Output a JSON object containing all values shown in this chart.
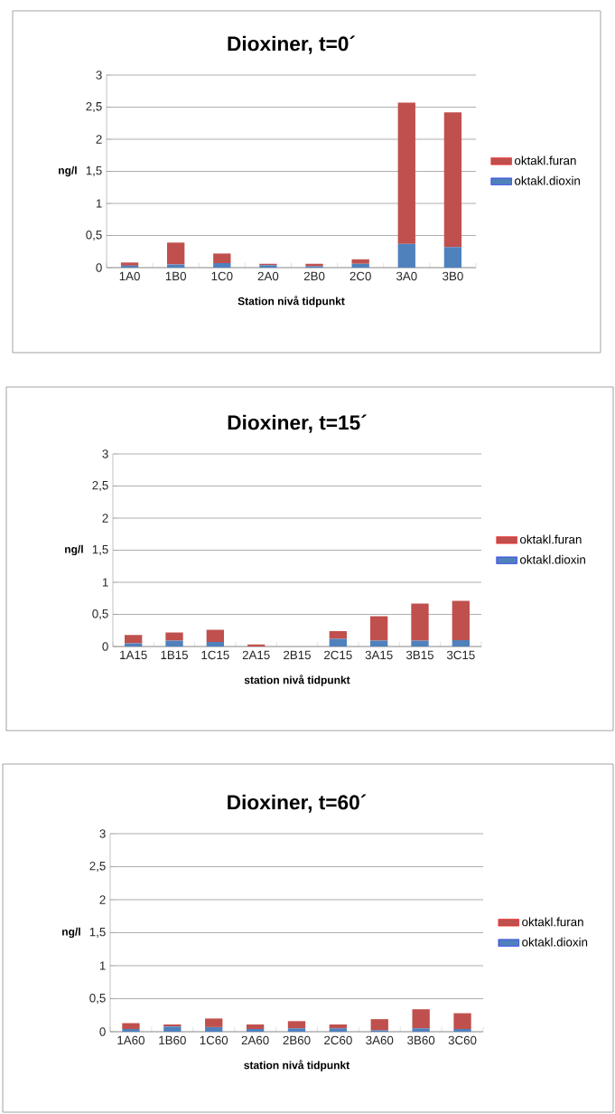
{
  "chart_data": [
    {
      "type": "bar",
      "title": "Dioxiner, t=0´",
      "xlabel": "Station nivå tidpunkt",
      "ylabel": "ng/l",
      "stacked": true,
      "grid": "y",
      "legend": "right",
      "categories": [
        "1A0",
        "1B0",
        "1C0",
        "2A0",
        "2B0",
        "2C0",
        "3A0",
        "3B0"
      ],
      "ylim": [
        0,
        3
      ],
      "yticks": [
        0,
        {
          "value": 0.5,
          "label": "0,5"
        },
        1,
        {
          "value": 1.5,
          "label": "1,5"
        },
        2,
        {
          "value": 2.5,
          "label": "2,5"
        },
        3
      ],
      "series": [
        {
          "name": "oktakl.dioxin",
          "color": "#4f81bd",
          "values": [
            0.03,
            0.05,
            0.07,
            0.04,
            0.02,
            0.06,
            0.37,
            0.32
          ]
        },
        {
          "name": "oktakl.furan",
          "color": "#c0504d",
          "values": [
            0.05,
            0.34,
            0.15,
            0.02,
            0.04,
            0.07,
            2.2,
            2.1
          ]
        }
      ]
    },
    {
      "type": "bar",
      "title": "Dioxiner, t=15´",
      "xlabel": "station nivå tidpunkt",
      "ylabel": "ng/l",
      "stacked": true,
      "grid": "y",
      "legend": "right",
      "categories": [
        "1A15",
        "1B15",
        "1C15",
        "2A15",
        "2B15",
        "2C15",
        "3A15",
        "3B15",
        "3C15"
      ],
      "ylim": [
        0,
        3
      ],
      "yticks": [
        0,
        {
          "value": 0.5,
          "label": "0,5"
        },
        1,
        {
          "value": 1.5,
          "label": "1,5"
        },
        2,
        {
          "value": 2.5,
          "label": "2,5"
        },
        3
      ],
      "series": [
        {
          "name": "oktakl.dioxin",
          "color": "#4f81bd",
          "values": [
            0.05,
            0.09,
            0.07,
            0,
            0,
            0.12,
            0.09,
            0.09,
            0.1
          ]
        },
        {
          "name": "oktakl.furan",
          "color": "#c0504d",
          "values": [
            0.13,
            0.13,
            0.19,
            0.03,
            0,
            0.12,
            0.38,
            0.58,
            0.61
          ]
        }
      ]
    },
    {
      "type": "bar",
      "title": "Dioxiner, t=60´",
      "xlabel": "station nivå tidpunkt",
      "ylabel": "ng/l",
      "stacked": true,
      "grid": "y",
      "legend": "right",
      "categories": [
        "1A60",
        "1B60",
        "1C60",
        "2A60",
        "2B60",
        "2C60",
        "3A60",
        "3B60",
        "3C60"
      ],
      "ylim": [
        0,
        3
      ],
      "yticks": [
        0,
        {
          "value": 0.5,
          "label": "0,5"
        },
        1,
        {
          "value": 1.5,
          "label": "1,5"
        },
        2,
        {
          "value": 2.5,
          "label": "2,5"
        },
        3
      ],
      "series": [
        {
          "name": "oktakl.dioxin",
          "color": "#4f81bd",
          "values": [
            0.04,
            0.08,
            0.07,
            0.04,
            0.05,
            0.05,
            0.02,
            0.05,
            0.04
          ]
        },
        {
          "name": "oktakl.furan",
          "color": "#c0504d",
          "values": [
            0.09,
            0.03,
            0.13,
            0.07,
            0.11,
            0.06,
            0.17,
            0.29,
            0.24
          ]
        }
      ]
    }
  ]
}
